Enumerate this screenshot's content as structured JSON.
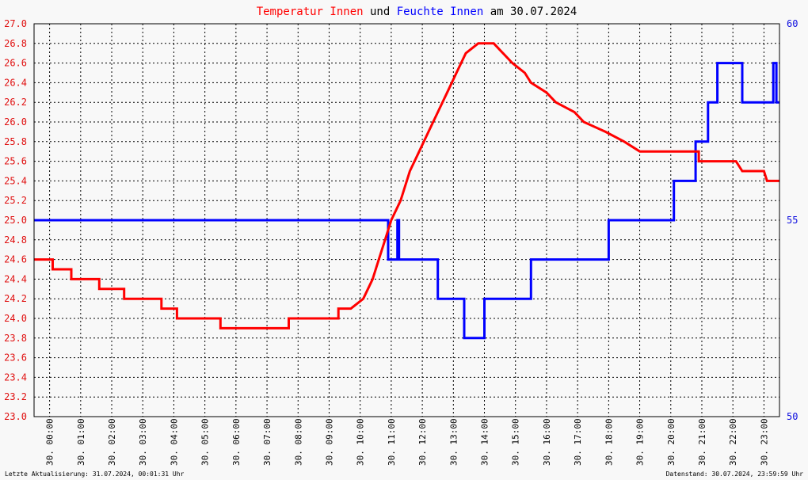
{
  "chart_data": {
    "type": "line",
    "title_parts": [
      {
        "text": "Temperatur Innen",
        "color": "#ff0000"
      },
      {
        "text": " und ",
        "color": "#000000"
      },
      {
        "text": "Feuchte Innen",
        "color": "#0000ff"
      },
      {
        "text": " am 30.07.2024",
        "color": "#000000"
      }
    ],
    "x_ticks": [
      "30. 00:00",
      "30. 01:00",
      "30. 02:00",
      "30. 03:00",
      "30. 04:00",
      "30. 05:00",
      "30. 06:00",
      "30. 07:00",
      "30. 08:00",
      "30. 09:00",
      "30. 10:00",
      "30. 11:00",
      "30. 12:00",
      "30. 13:00",
      "30. 14:00",
      "30. 15:00",
      "30. 16:00",
      "30. 17:00",
      "30. 18:00",
      "30. 19:00",
      "30. 20:00",
      "30. 21:00",
      "30. 22:00",
      "30. 23:00"
    ],
    "y_left_ticks": [
      "23.0",
      "23.2",
      "23.4",
      "23.6",
      "23.8",
      "24.0",
      "24.2",
      "24.4",
      "24.6",
      "24.8",
      "25.0",
      "25.2",
      "25.4",
      "25.6",
      "25.8",
      "26.0",
      "26.2",
      "26.4",
      "26.6",
      "26.8",
      "27.0"
    ],
    "y_right_ticks": [
      "50",
      "55",
      "60"
    ],
    "ylim_left": [
      23.0,
      27.0
    ],
    "ylim_right": [
      50,
      60
    ],
    "xlim_hours": [
      0,
      24
    ],
    "grid": true,
    "colors": {
      "temperature": "#ff0000",
      "humidity": "#0000ff",
      "grid": "#000000"
    },
    "series": [
      {
        "key": "temperature",
        "axis": "left",
        "points": [
          [
            0.0,
            24.6
          ],
          [
            0.6,
            24.6
          ],
          [
            0.6,
            24.5
          ],
          [
            1.2,
            24.5
          ],
          [
            1.2,
            24.4
          ],
          [
            2.1,
            24.4
          ],
          [
            2.1,
            24.3
          ],
          [
            2.9,
            24.3
          ],
          [
            2.9,
            24.2
          ],
          [
            4.1,
            24.2
          ],
          [
            4.1,
            24.1
          ],
          [
            4.6,
            24.1
          ],
          [
            4.6,
            24.0
          ],
          [
            6.0,
            24.0
          ],
          [
            6.0,
            23.9
          ],
          [
            8.2,
            23.9
          ],
          [
            8.2,
            24.0
          ],
          [
            9.8,
            24.0
          ],
          [
            9.8,
            24.1
          ],
          [
            10.2,
            24.1
          ],
          [
            10.6,
            24.2
          ],
          [
            10.9,
            24.4
          ],
          [
            11.1,
            24.6
          ],
          [
            11.3,
            24.8
          ],
          [
            11.5,
            25.0
          ],
          [
            11.8,
            25.2
          ],
          [
            12.1,
            25.5
          ],
          [
            12.4,
            25.7
          ],
          [
            12.7,
            25.9
          ],
          [
            13.0,
            26.1
          ],
          [
            13.3,
            26.3
          ],
          [
            13.6,
            26.5
          ],
          [
            13.9,
            26.7
          ],
          [
            14.3,
            26.8
          ],
          [
            14.8,
            26.8
          ],
          [
            15.1,
            26.7
          ],
          [
            15.4,
            26.6
          ],
          [
            15.8,
            26.5
          ],
          [
            16.0,
            26.4
          ],
          [
            16.5,
            26.3
          ],
          [
            16.8,
            26.2
          ],
          [
            17.4,
            26.1
          ],
          [
            17.7,
            26.0
          ],
          [
            18.4,
            25.9
          ],
          [
            19.0,
            25.8
          ],
          [
            19.5,
            25.7
          ],
          [
            21.4,
            25.7
          ],
          [
            21.4,
            25.6
          ],
          [
            22.6,
            25.6
          ],
          [
            22.8,
            25.5
          ],
          [
            23.5,
            25.5
          ],
          [
            23.6,
            25.4
          ],
          [
            24.0,
            25.4
          ]
        ]
      },
      {
        "key": "humidity",
        "axis": "right",
        "points": [
          [
            0.0,
            55.0
          ],
          [
            11.4,
            55.0
          ],
          [
            11.4,
            54.0
          ],
          [
            11.7,
            54.0
          ],
          [
            11.7,
            55.0
          ],
          [
            11.75,
            55.0
          ],
          [
            11.75,
            54.0
          ],
          [
            13.0,
            54.0
          ],
          [
            13.0,
            53.0
          ],
          [
            13.85,
            53.0
          ],
          [
            13.85,
            52.0
          ],
          [
            14.5,
            52.0
          ],
          [
            14.5,
            53.0
          ],
          [
            16.0,
            53.0
          ],
          [
            16.0,
            54.0
          ],
          [
            18.5,
            54.0
          ],
          [
            18.5,
            55.0
          ],
          [
            20.6,
            55.0
          ],
          [
            20.6,
            56.0
          ],
          [
            21.3,
            56.0
          ],
          [
            21.3,
            57.0
          ],
          [
            21.7,
            57.0
          ],
          [
            21.7,
            58.0
          ],
          [
            22.0,
            58.0
          ],
          [
            22.0,
            59.0
          ],
          [
            22.8,
            59.0
          ],
          [
            22.8,
            58.0
          ],
          [
            23.8,
            58.0
          ],
          [
            23.8,
            59.0
          ],
          [
            23.9,
            59.0
          ],
          [
            23.9,
            58.0
          ],
          [
            24.0,
            58.0
          ]
        ]
      }
    ]
  },
  "footer": {
    "left": "Letzte Aktualisierung: 31.07.2024, 00:01:31 Uhr",
    "right": "Datenstand: 30.07.2024, 23:59:59 Uhr"
  }
}
